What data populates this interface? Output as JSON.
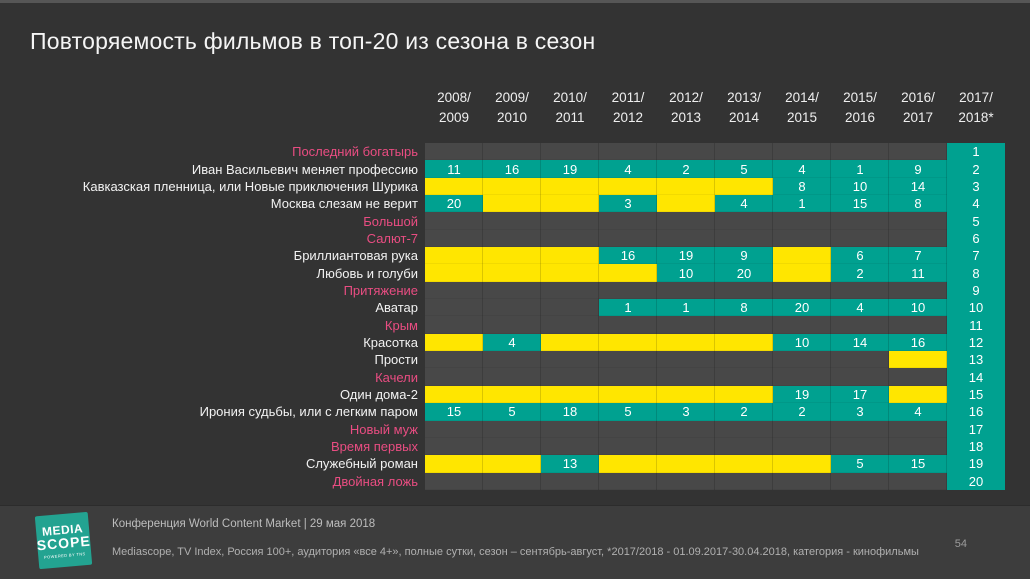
{
  "title": "Повторяемость фильмов в топ-20 из сезона в сезон",
  "colors": {
    "background": "#333333",
    "empty_cell": "#484848",
    "teal": "#00a190",
    "yellow": "#ffe600",
    "new_film_pink": "#e94d82",
    "text_white": "#f2f2f2",
    "footer_bg": "#3d3d3d"
  },
  "chart_data": {
    "type": "heatmap",
    "title": "Повторяемость фильмов в топ-20 из сезона в сезон",
    "columns": [
      "2008/2009",
      "2009/2010",
      "2010/2011",
      "2011/2012",
      "2012/2013",
      "2013/2014",
      "2014/2015",
      "2015/2016",
      "2016/2017",
      "2017/2018*"
    ],
    "last_column_is_rank": true,
    "cell_legend": {
      "number_teal": "position in that season top-20",
      "yellow": "present without shown position",
      "gray": "absent"
    },
    "rows": [
      {
        "rank": 1,
        "label": "Последний богатырь",
        "new_entry": true,
        "cells": [
          null,
          null,
          null,
          null,
          null,
          null,
          null,
          null,
          null
        ]
      },
      {
        "rank": 2,
        "label": "Иван Васильевич меняет профессию",
        "new_entry": false,
        "cells": [
          11,
          16,
          19,
          4,
          2,
          5,
          4,
          1,
          9
        ]
      },
      {
        "rank": 3,
        "label": "Кавказская пленница, или Новые приключения Шурика",
        "new_entry": false,
        "cells": [
          "Y",
          "Y",
          "Y",
          "Y",
          "Y",
          "Y",
          8,
          10,
          14
        ]
      },
      {
        "rank": 4,
        "label": "Москва слезам не верит",
        "new_entry": false,
        "cells": [
          20,
          "Y",
          "Y",
          3,
          "Y",
          4,
          1,
          15,
          8
        ]
      },
      {
        "rank": 5,
        "label": "Большой",
        "new_entry": true,
        "cells": [
          null,
          null,
          null,
          null,
          null,
          null,
          null,
          null,
          null
        ]
      },
      {
        "rank": 6,
        "label": "Салют-7",
        "new_entry": true,
        "cells": [
          null,
          null,
          null,
          null,
          null,
          null,
          null,
          null,
          null
        ]
      },
      {
        "rank": 7,
        "label": "Бриллиантовая рука",
        "new_entry": false,
        "cells": [
          "Y",
          "Y",
          "Y",
          16,
          19,
          9,
          "Y",
          6,
          7
        ]
      },
      {
        "rank": 8,
        "label": "Любовь и голуби",
        "new_entry": false,
        "cells": [
          "Y",
          "Y",
          "Y",
          "Y",
          10,
          20,
          "Y",
          2,
          11
        ]
      },
      {
        "rank": 9,
        "label": "Притяжение",
        "new_entry": true,
        "cells": [
          null,
          null,
          null,
          null,
          null,
          null,
          null,
          null,
          null
        ]
      },
      {
        "rank": 10,
        "label": "Аватар",
        "new_entry": false,
        "cells": [
          null,
          null,
          null,
          1,
          1,
          8,
          20,
          4,
          10
        ]
      },
      {
        "rank": 11,
        "label": "Крым",
        "new_entry": true,
        "cells": [
          null,
          null,
          null,
          null,
          null,
          null,
          null,
          null,
          null
        ]
      },
      {
        "rank": 12,
        "label": "Красотка",
        "new_entry": false,
        "cells": [
          "Y",
          4,
          "Y",
          "Y",
          "Y",
          "Y",
          10,
          14,
          16
        ]
      },
      {
        "rank": 13,
        "label": "Прости",
        "new_entry": false,
        "cells": [
          null,
          null,
          null,
          null,
          null,
          null,
          null,
          null,
          "Y"
        ]
      },
      {
        "rank": 14,
        "label": "Качели",
        "new_entry": true,
        "cells": [
          null,
          null,
          null,
          null,
          null,
          null,
          null,
          null,
          null
        ]
      },
      {
        "rank": 15,
        "label": "Один дома-2",
        "new_entry": false,
        "cells": [
          "Y",
          "Y",
          "Y",
          "Y",
          "Y",
          "Y",
          19,
          17,
          "Y"
        ]
      },
      {
        "rank": 16,
        "label": "Ирония судьбы, или с легким паром",
        "new_entry": false,
        "cells": [
          15,
          5,
          18,
          5,
          3,
          2,
          2,
          3,
          4
        ]
      },
      {
        "rank": 17,
        "label": "Новый муж",
        "new_entry": true,
        "cells": [
          null,
          null,
          null,
          null,
          null,
          null,
          null,
          null,
          null
        ]
      },
      {
        "rank": 18,
        "label": "Время первых",
        "new_entry": true,
        "cells": [
          null,
          null,
          null,
          null,
          null,
          null,
          null,
          null,
          null
        ]
      },
      {
        "rank": 19,
        "label": "Служебный роман",
        "new_entry": false,
        "cells": [
          "Y",
          "Y",
          13,
          "Y",
          "Y",
          "Y",
          "Y",
          5,
          15
        ]
      },
      {
        "rank": 20,
        "label": "Двойная ложь",
        "new_entry": true,
        "cells": [
          null,
          null,
          null,
          null,
          null,
          null,
          null,
          null,
          null
        ]
      }
    ]
  },
  "footer": {
    "line1": "Конференция World Content Market | 29 мая 2018",
    "line2": "Mediascope, TV Index, Россия 100+, аудитория «все 4+», полные сутки, сезон – сентябрь-август, *2017/2018 - 01.09.2017-30.04.2018, категория - кинофильмы",
    "page_number": "54",
    "logo": {
      "line1": "MEDIA",
      "line2": "SCOPE",
      "line3": "POWERED BY TNS"
    }
  }
}
